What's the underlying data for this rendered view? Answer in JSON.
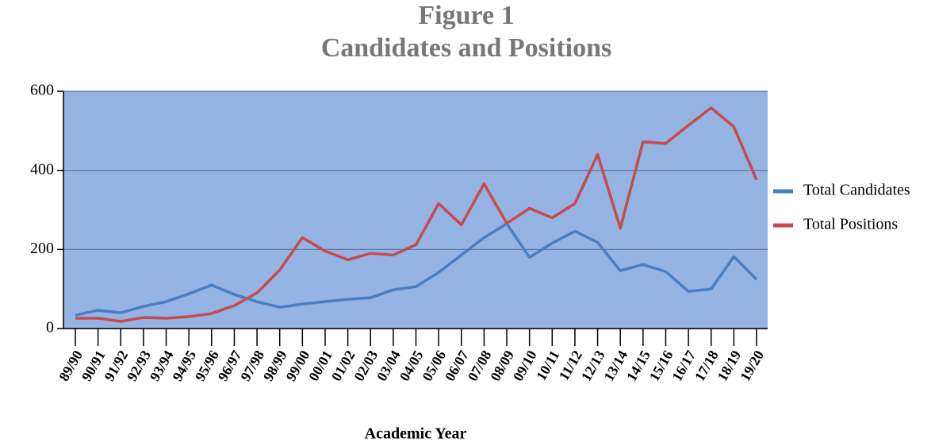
{
  "chart_data": {
    "type": "line",
    "title": "Figure 1",
    "subtitle": "Candidates and Positions",
    "x_label": "Academic Year",
    "categories": [
      "89/90",
      "90/91",
      "91/92",
      "92/93",
      "93/94",
      "94/95",
      "95/96",
      "96/97",
      "97/98",
      "98/99",
      "99/00",
      "00/01",
      "01/02",
      "02/03",
      "03/04",
      "04/05",
      "05/06",
      "06/07",
      "07/08",
      "08/09",
      "09/10",
      "10/11",
      "11/12",
      "12/13",
      "13/14",
      "14/15",
      "15/16",
      "16/17",
      "17/18",
      "18/19",
      "19/20"
    ],
    "series": [
      {
        "name": "Total Candidates",
        "color": "#4a7ec2",
        "values": [
          34,
          46,
          40,
          56,
          68,
          88,
          110,
          86,
          68,
          54,
          62,
          68,
          74,
          78,
          98,
          106,
          142,
          186,
          230,
          265,
          180,
          216,
          246,
          218,
          146,
          162,
          144,
          94,
          100,
          182,
          124
        ]
      },
      {
        "name": "Total Positions",
        "color": "#c84b4b",
        "values": [
          26,
          26,
          18,
          28,
          26,
          30,
          38,
          58,
          90,
          148,
          230,
          196,
          174,
          190,
          186,
          212,
          316,
          262,
          366,
          266,
          304,
          280,
          316,
          440,
          254,
          472,
          468,
          514,
          558,
          510,
          376
        ]
      }
    ],
    "ylim": [
      0,
      600
    ],
    "yticks": [
      0,
      200,
      400,
      600
    ],
    "grid": true,
    "plot_background": "#95b3e3",
    "legend": "right"
  }
}
